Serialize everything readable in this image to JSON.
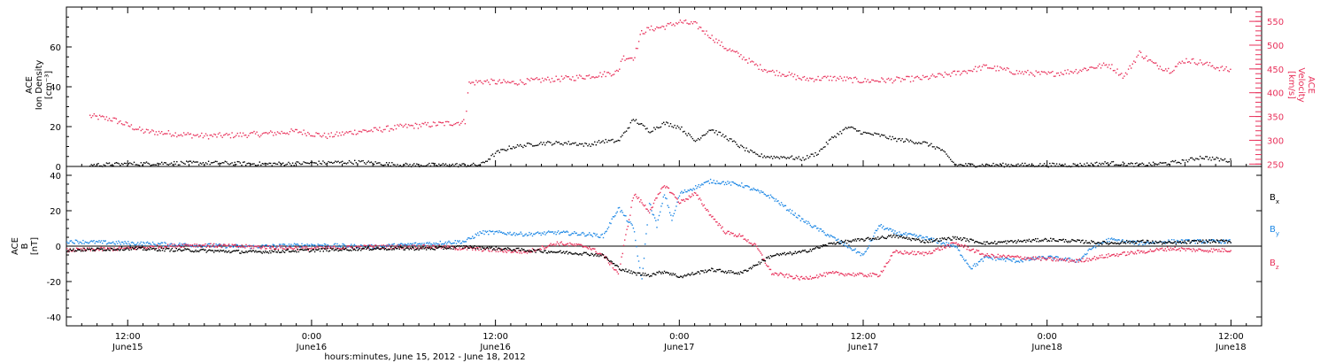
{
  "colors": {
    "density": "#000000",
    "velocity": "#e8305a",
    "bx": "#000000",
    "by": "#1e88e5",
    "bz": "#e8305a"
  },
  "time_axis": {
    "title": "hours:minutes, June 15, 2012 - June 18, 2012",
    "xlim": [
      8,
      86
    ],
    "ticks": [
      {
        "t": 12,
        "time": "12:00",
        "date": "June15"
      },
      {
        "t": 24,
        "time": "0:00",
        "date": "June16"
      },
      {
        "t": 36,
        "time": "12:00",
        "date": "June16"
      },
      {
        "t": 48,
        "time": "0:00",
        "date": "June17"
      },
      {
        "t": 60,
        "time": "12:00",
        "date": "June17"
      },
      {
        "t": 72,
        "time": "0:00",
        "date": "June18"
      },
      {
        "t": 84,
        "time": "12:00",
        "date": "June18"
      }
    ]
  },
  "chart_data": [
    {
      "type": "scatter",
      "panel": "top",
      "ylabel_left": [
        "ACE",
        "Ion Density",
        "[cm⁻³]"
      ],
      "ylabel_right": [
        "ACE",
        "Velocity",
        "[km/s]"
      ],
      "ylim_left": [
        0,
        80
      ],
      "ylim_right": [
        245,
        580
      ],
      "yticks_left": [
        "0",
        "20",
        "40",
        "60"
      ],
      "yticks_right": [
        "250",
        "300",
        "350",
        "400",
        "450",
        "500",
        "550"
      ],
      "series": [
        {
          "id": "density",
          "axis": "left",
          "x": [
            9.5,
            12,
            15,
            18,
            21,
            24,
            27,
            30,
            33,
            35,
            36,
            37,
            38,
            39,
            40,
            41,
            42,
            43,
            44,
            45,
            46,
            47,
            48,
            49,
            50,
            51,
            52,
            53,
            54,
            55,
            56,
            57,
            58,
            59,
            60,
            61,
            62,
            63,
            64,
            65,
            66,
            67,
            68,
            69,
            70,
            72,
            74,
            76,
            78,
            80,
            81,
            82,
            83,
            84
          ],
          "y": [
            1,
            1.5,
            2,
            2,
            1.5,
            2,
            2.5,
            1,
            1,
            1,
            7,
            10,
            11,
            12,
            12,
            12,
            11,
            13,
            13,
            24,
            18,
            22,
            20,
            13,
            19,
            15,
            10,
            6,
            5,
            5,
            4,
            7,
            15,
            20,
            17,
            16,
            14,
            13,
            12,
            9,
            1,
            1,
            1,
            1,
            1,
            1,
            1,
            2,
            1,
            2,
            3,
            5,
            4,
            3
          ]
        },
        {
          "id": "velocity",
          "axis": "right",
          "x": [
            9.5,
            11,
            13,
            15,
            17,
            19,
            21,
            23,
            25,
            27,
            28,
            30,
            33,
            34,
            34.2,
            35,
            37,
            39,
            41,
            43,
            44,
            44.2,
            45,
            45.5,
            46,
            47,
            48,
            49,
            50,
            51,
            52,
            53,
            54,
            55,
            56,
            58,
            60,
            62,
            64,
            66,
            68,
            70,
            72,
            74,
            75,
            76,
            77,
            78,
            79,
            80,
            81,
            82,
            83,
            84
          ],
          "y": [
            352,
            345,
            320,
            315,
            310,
            312,
            315,
            320,
            310,
            320,
            322,
            330,
            337,
            340,
            420,
            425,
            422,
            428,
            432,
            440,
            445,
            475,
            475,
            528,
            535,
            540,
            550,
            545,
            520,
            495,
            478,
            458,
            445,
            440,
            430,
            432,
            426,
            428,
            432,
            442,
            456,
            444,
            440,
            448,
            455,
            460,
            435,
            485,
            460,
            448,
            470,
            465,
            455,
            447
          ]
        }
      ]
    },
    {
      "type": "scatter",
      "panel": "bottom",
      "ylabel_left": [
        "ACE",
        "B",
        "[nT]"
      ],
      "ylim": [
        -45,
        45
      ],
      "yticks": [
        "-40",
        "-20",
        "0",
        "20",
        "40"
      ],
      "legend": [
        "B",
        "B",
        "B"
      ],
      "series": [
        {
          "id": "bx",
          "x": [
            8,
            12,
            16,
            20,
            24,
            28,
            32,
            34,
            36,
            38,
            40,
            42,
            43,
            44,
            45,
            46,
            47,
            48,
            50,
            52,
            54,
            56,
            58,
            60,
            62,
            64,
            66,
            68,
            70,
            72,
            74,
            76,
            78,
            80,
            82,
            84
          ],
          "y": [
            -2,
            -1,
            -2,
            -3,
            -2,
            -1,
            -1,
            0,
            -1,
            -2,
            -3,
            -4,
            -5,
            -12,
            -15,
            -16,
            -14,
            -17,
            -13,
            -15,
            -5,
            -3,
            2,
            4,
            6,
            3,
            5,
            2,
            3,
            4,
            3,
            2,
            3,
            2,
            3,
            3
          ]
        },
        {
          "id": "by",
          "x": [
            8,
            12,
            16,
            20,
            24,
            28,
            32,
            34,
            35,
            36,
            38,
            40,
            42,
            43,
            44,
            45,
            45.5,
            46,
            46.5,
            47,
            47.5,
            48,
            50,
            52,
            54,
            56,
            58,
            60,
            61,
            62,
            64,
            66,
            67,
            68,
            70,
            72,
            74,
            75,
            76,
            78,
            80,
            82,
            84
          ],
          "y": [
            3,
            2,
            1,
            0,
            1,
            0,
            2,
            3,
            8,
            8,
            7,
            8,
            7,
            6,
            22,
            10,
            -20,
            25,
            12,
            30,
            15,
            30,
            37,
            35,
            28,
            15,
            5,
            -5,
            12,
            8,
            5,
            0,
            -12,
            -6,
            -8,
            -6,
            -8,
            0,
            4,
            2,
            3,
            3,
            3
          ]
        },
        {
          "id": "bz",
          "x": [
            8,
            12,
            16,
            20,
            24,
            28,
            32,
            34,
            36,
            38,
            40,
            42,
            43,
            44,
            45,
            46,
            47,
            48,
            49,
            50,
            51,
            52,
            53,
            54,
            56,
            58,
            60,
            61,
            62,
            64,
            66,
            68,
            70,
            72,
            74,
            76,
            78,
            80,
            82,
            84
          ],
          "y": [
            -2,
            -1,
            1,
            0,
            -1,
            0,
            0,
            -1,
            -2,
            -3,
            2,
            0,
            -5,
            -15,
            30,
            20,
            35,
            25,
            30,
            18,
            8,
            6,
            0,
            -15,
            -18,
            -15,
            -16,
            -16,
            -3,
            -4,
            2,
            -5,
            -6,
            -7,
            -8,
            -5,
            -3,
            -1,
            -2,
            -2
          ]
        }
      ]
    }
  ]
}
